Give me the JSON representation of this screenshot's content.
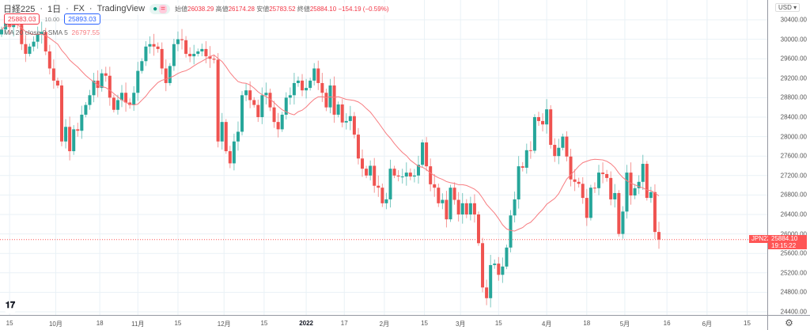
{
  "header": {
    "title": "日経225",
    "interval": "1日",
    "source": "FX",
    "brand": "TradingView",
    "ohlc": {
      "open_label": "始値",
      "open": "26038.29",
      "high_label": "高値",
      "high": "26174.28",
      "low_label": "安値",
      "low": "25783.52",
      "close_label": "終値",
      "close": "25884.10",
      "change": "−154.19 (−0.59%)"
    }
  },
  "bid": "25883.03",
  "spread": "10.00",
  "ask": "25893.03",
  "indicator": {
    "label": "MA 20 close 0 SMA 5",
    "value": "26797.55"
  },
  "currency": "USD",
  "symbol_tag": "JPN225",
  "price_tag": "25884.10",
  "countdown": "19:15:22",
  "colors": {
    "up": "#26a69a",
    "down": "#ef5350",
    "ma": "#f77c80",
    "grid": "#e9f1f6"
  },
  "chart_data": {
    "type": "candlestick",
    "ylim": [
      24400,
      30600
    ],
    "yticks": [
      "30400.00",
      "30000.00",
      "29600.00",
      "29200.00",
      "28800.00",
      "28400.00",
      "28000.00",
      "27600.00",
      "27200.00",
      "26800.00",
      "26400.00",
      "26000.00",
      "25600.00",
      "25200.00",
      "24800.00",
      "24400.00"
    ],
    "xticks": [
      {
        "label": "15",
        "i": 2
      },
      {
        "label": "10月",
        "i": 13.5
      },
      {
        "label": "18",
        "i": 24.5
      },
      {
        "label": "11月",
        "i": 34
      },
      {
        "label": "15",
        "i": 44
      },
      {
        "label": "12月",
        "i": 55.5
      },
      {
        "label": "15",
        "i": 65.5
      },
      {
        "label": "2022",
        "i": 76,
        "bold": true
      },
      {
        "label": "17",
        "i": 85.5
      },
      {
        "label": "2月",
        "i": 95.5
      },
      {
        "label": "15",
        "i": 105.5
      },
      {
        "label": "3月",
        "i": 114.5
      },
      {
        "label": "15",
        "i": 124
      },
      {
        "label": "4月",
        "i": 136
      },
      {
        "label": "18",
        "i": 146
      },
      {
        "label": "5月",
        "i": 155.5
      },
      {
        "label": "16",
        "i": 166
      },
      {
        "label": "6月",
        "i": 176
      },
      {
        "label": "15",
        "i": 186
      }
    ],
    "first_open": 30100,
    "closes": [
      30200,
      30350,
      30250,
      30400,
      30300,
      29900,
      29700,
      29850,
      29950,
      30100,
      30150,
      29750,
      29400,
      29150,
      29050,
      27900,
      28200,
      27700,
      28150,
      28120,
      28450,
      28650,
      28850,
      29150,
      29000,
      29300,
      29250,
      28800,
      28550,
      28750,
      28900,
      28700,
      28650,
      28900,
      29350,
      29550,
      29850,
      29900,
      29850,
      29800,
      29400,
      29100,
      29450,
      29900,
      30000,
      29980,
      29700,
      29650,
      29700,
      29750,
      29800,
      29650,
      29600,
      29580,
      27900,
      28300,
      27700,
      27450,
      27900,
      28100,
      28850,
      28950,
      28750,
      28650,
      28400,
      28850,
      28900,
      28600,
      28300,
      28150,
      28450,
      28800,
      28850,
      29100,
      29150,
      28950,
      29000,
      29150,
      29400,
      29100,
      28900,
      28600,
      29050,
      28450,
      28660,
      28290,
      28320,
      28420,
      28040,
      27550,
      27340,
      27200,
      27400,
      26990,
      26950,
      26630,
      26710,
      27340,
      27200,
      27180,
      27180,
      27260,
      27180,
      27200,
      27420,
      27880,
      27390,
      27020,
      26950,
      26630,
      26700,
      26300,
      26950,
      26700,
      26400,
      26630,
      26400,
      26630,
      26400,
      25810,
      24900,
      24680,
      25360,
      25390,
      25160,
      25330,
      25720,
      26380,
      26710,
      27390,
      27360,
      27720,
      27710,
      28400,
      28320,
      28250,
      28560,
      27830,
      27600,
      27770,
      28000,
      27590,
      27120,
      27070,
      27030,
      26740,
      26330,
      26950,
      26940,
      27260,
      27230,
      27150,
      26710,
      26840,
      26000,
      26460,
      27260,
      26790,
      26940,
      27070,
      27440,
      26740,
      26860,
      26040,
      25884
    ],
    "ma_period": 20,
    "last_price": 25884.1
  }
}
